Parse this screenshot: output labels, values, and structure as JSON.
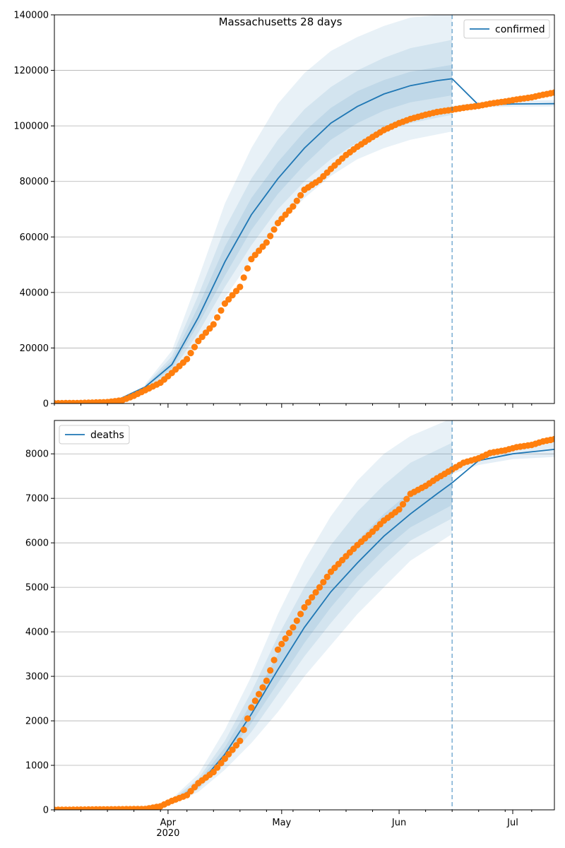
{
  "figure": {
    "title": "Massachusetts 28 days"
  },
  "colors": {
    "model": "#1f77b4",
    "observed": "#ff7f0e",
    "band": "#1f77b4",
    "grid": "#b0b0b0",
    "axis": "#000000"
  },
  "chart_data": [
    {
      "type": "line",
      "name": "confirmed-panel",
      "legend": "confirmed",
      "legend_position": "top-right",
      "grid": "y",
      "ylim": [
        0,
        140000
      ],
      "yticks": [
        0,
        20000,
        40000,
        60000,
        80000,
        100000,
        120000,
        140000
      ],
      "xlim": [
        "2020-03-02",
        "2020-07-12"
      ],
      "forecast_start": "2020-06-15",
      "model": {
        "x": [
          "2020-03-02",
          "2020-03-12",
          "2020-03-19",
          "2020-03-26",
          "2020-04-02",
          "2020-04-09",
          "2020-04-16",
          "2020-04-23",
          "2020-04-30",
          "2020-05-07",
          "2020-05-14",
          "2020-05-21",
          "2020-05-28",
          "2020-06-04",
          "2020-06-11",
          "2020-06-15",
          "2020-06-22",
          "2020-07-01",
          "2020-07-12"
        ],
        "y": [
          0,
          200,
          1500,
          6000,
          14000,
          31000,
          51000,
          68000,
          81000,
          92000,
          101000,
          107000,
          111500,
          114500,
          116300,
          117000,
          107500,
          107900,
          108000
        ]
      },
      "bands": [
        {
          "level": "outer",
          "x": [
            "2020-03-26",
            "2020-04-02",
            "2020-04-09",
            "2020-04-16",
            "2020-04-23",
            "2020-04-30",
            "2020-05-07",
            "2020-05-14",
            "2020-05-21",
            "2020-05-28",
            "2020-06-04",
            "2020-06-15"
          ],
          "upper": [
            7000,
            19000,
            45000,
            72000,
            92000,
            108000,
            119000,
            127000,
            132000,
            136000,
            139000,
            140500
          ],
          "lower": [
            5000,
            10000,
            22000,
            38000,
            52000,
            64000,
            74000,
            82000,
            88000,
            92000,
            95000,
            98000
          ]
        },
        {
          "level": "middle",
          "x": [
            "2020-03-26",
            "2020-04-02",
            "2020-04-09",
            "2020-04-16",
            "2020-04-23",
            "2020-04-30",
            "2020-05-07",
            "2020-05-14",
            "2020-05-21",
            "2020-05-28",
            "2020-06-04",
            "2020-06-15"
          ],
          "upper": [
            6600,
            17000,
            39000,
            63000,
            81000,
            95000,
            106000,
            114000,
            120000,
            124500,
            128000,
            131000
          ],
          "lower": [
            5300,
            11500,
            25500,
            42000,
            57000,
            70000,
            80000,
            88000,
            94000,
            98000,
            101000,
            104000
          ]
        },
        {
          "level": "inner",
          "x": [
            "2020-03-26",
            "2020-04-02",
            "2020-04-09",
            "2020-04-16",
            "2020-04-23",
            "2020-04-30",
            "2020-05-07",
            "2020-05-14",
            "2020-05-21",
            "2020-05-28",
            "2020-06-04",
            "2020-06-15"
          ],
          "upper": [
            6300,
            15500,
            35000,
            56500,
            74000,
            87000,
            98000,
            106500,
            112500,
            116500,
            119500,
            122000
          ],
          "lower": [
            5700,
            12800,
            28500,
            46000,
            62500,
            75500,
            86000,
            95000,
            101000,
            105500,
            108500,
            111000
          ]
        }
      ],
      "forecast_band": {
        "x": [
          "2020-06-15",
          "2020-06-22",
          "2020-07-01",
          "2020-07-12"
        ],
        "upper": [
          107200,
          108400,
          109000,
          109300
        ],
        "lower": [
          105600,
          106700,
          106900,
          107000
        ]
      },
      "observed": {
        "x": [
          "2020-03-02",
          "2020-03-09",
          "2020-03-16",
          "2020-03-20",
          "2020-03-23",
          "2020-03-26",
          "2020-03-30",
          "2020-04-02",
          "2020-04-06",
          "2020-04-09",
          "2020-04-13",
          "2020-04-16",
          "2020-04-20",
          "2020-04-23",
          "2020-04-27",
          "2020-04-30",
          "2020-05-04",
          "2020-05-07",
          "2020-05-11",
          "2020-05-14",
          "2020-05-18",
          "2020-05-21",
          "2020-05-25",
          "2020-05-28",
          "2020-06-01",
          "2020-06-04",
          "2020-06-08",
          "2020-06-11",
          "2020-06-15",
          "2020-06-18",
          "2020-06-22",
          "2020-06-25",
          "2020-06-29",
          "2020-07-02",
          "2020-07-06",
          "2020-07-09",
          "2020-07-12"
        ],
        "y": [
          100,
          200,
          500,
          1200,
          2800,
          4800,
          7500,
          11000,
          16000,
          22500,
          28500,
          36000,
          42000,
          52000,
          58000,
          65000,
          71000,
          77000,
          80500,
          84500,
          89500,
          92500,
          96000,
          98500,
          101000,
          102500,
          104000,
          105000,
          105800,
          106500,
          107200,
          108000,
          108800,
          109500,
          110300,
          111200,
          112000
        ]
      }
    },
    {
      "type": "line",
      "name": "deaths-panel",
      "legend": "deaths",
      "legend_position": "top-left",
      "grid": "y",
      "ylim": [
        0,
        8750
      ],
      "yticks": [
        0,
        1000,
        2000,
        3000,
        4000,
        5000,
        6000,
        7000,
        8000
      ],
      "xlim": [
        "2020-03-02",
        "2020-07-12"
      ],
      "xtick_labels": [
        {
          "date": "2020-04-01",
          "label": "Apr",
          "sublabel": "2020"
        },
        {
          "date": "2020-05-01",
          "label": "May",
          "sublabel": ""
        },
        {
          "date": "2020-06-01",
          "label": "Jun",
          "sublabel": ""
        },
        {
          "date": "2020-07-01",
          "label": "Jul",
          "sublabel": ""
        }
      ],
      "forecast_start": "2020-06-15",
      "model": {
        "x": [
          "2020-03-02",
          "2020-03-29",
          "2020-04-02",
          "2020-04-09",
          "2020-04-16",
          "2020-04-23",
          "2020-04-30",
          "2020-05-07",
          "2020-05-14",
          "2020-05-21",
          "2020-05-28",
          "2020-06-04",
          "2020-06-11",
          "2020-06-15",
          "2020-06-22",
          "2020-07-01",
          "2020-07-12"
        ],
        "y": [
          0,
          50,
          180,
          550,
          1250,
          2150,
          3150,
          4100,
          4900,
          5550,
          6150,
          6650,
          7100,
          7350,
          7850,
          8000,
          8100
        ]
      },
      "bands": [
        {
          "level": "outer",
          "x": [
            "2020-04-02",
            "2020-04-09",
            "2020-04-16",
            "2020-04-23",
            "2020-04-30",
            "2020-05-07",
            "2020-05-14",
            "2020-05-21",
            "2020-05-28",
            "2020-06-04",
            "2020-06-15"
          ],
          "upper": [
            250,
            800,
            1800,
            3000,
            4400,
            5600,
            6600,
            7400,
            8000,
            8400,
            8800
          ],
          "lower": [
            130,
            400,
            900,
            1500,
            2200,
            3000,
            3700,
            4400,
            5000,
            5600,
            6200
          ]
        },
        {
          "level": "middle",
          "x": [
            "2020-04-02",
            "2020-04-09",
            "2020-04-16",
            "2020-04-23",
            "2020-04-30",
            "2020-05-07",
            "2020-05-14",
            "2020-05-21",
            "2020-05-28",
            "2020-06-04",
            "2020-06-15"
          ],
          "upper": [
            230,
            700,
            1550,
            2650,
            3900,
            5000,
            5950,
            6700,
            7300,
            7800,
            8250
          ],
          "lower": [
            150,
            460,
            1050,
            1750,
            2600,
            3450,
            4200,
            4900,
            5500,
            6050,
            6550
          ]
        },
        {
          "level": "inner",
          "x": [
            "2020-04-02",
            "2020-04-09",
            "2020-04-16",
            "2020-04-23",
            "2020-04-30",
            "2020-05-07",
            "2020-05-14",
            "2020-05-21",
            "2020-05-28",
            "2020-06-04",
            "2020-06-15"
          ],
          "upper": [
            210,
            630,
            1400,
            2400,
            3500,
            4500,
            5350,
            6050,
            6650,
            7150,
            7600
          ],
          "lower": [
            165,
            500,
            1150,
            1950,
            2850,
            3750,
            4550,
            5250,
            5850,
            6350,
            6850
          ]
        }
      ],
      "forecast_band": {
        "x": [
          "2020-06-15",
          "2020-06-22",
          "2020-07-01",
          "2020-07-12"
        ],
        "upper": [
          7700,
          7950,
          8150,
          8280
        ],
        "lower": [
          7550,
          7750,
          7880,
          7930
        ]
      },
      "observed": {
        "x": [
          "2020-03-02",
          "2020-03-26",
          "2020-03-30",
          "2020-04-02",
          "2020-04-06",
          "2020-04-09",
          "2020-04-13",
          "2020-04-16",
          "2020-04-20",
          "2020-04-23",
          "2020-04-27",
          "2020-04-30",
          "2020-05-04",
          "2020-05-07",
          "2020-05-11",
          "2020-05-14",
          "2020-05-18",
          "2020-05-21",
          "2020-05-25",
          "2020-05-28",
          "2020-06-01",
          "2020-06-04",
          "2020-06-08",
          "2020-06-11",
          "2020-06-15",
          "2020-06-18",
          "2020-06-22",
          "2020-06-25",
          "2020-06-29",
          "2020-07-02",
          "2020-07-06",
          "2020-07-09",
          "2020-07-12"
        ],
        "y": [
          0,
          20,
          80,
          200,
          330,
          600,
          850,
          1150,
          1550,
          2300,
          2900,
          3600,
          4100,
          4550,
          5000,
          5350,
          5700,
          5950,
          6250,
          6500,
          6750,
          7100,
          7280,
          7450,
          7650,
          7800,
          7900,
          8020,
          8080,
          8150,
          8200,
          8280,
          8330
        ]
      }
    }
  ]
}
